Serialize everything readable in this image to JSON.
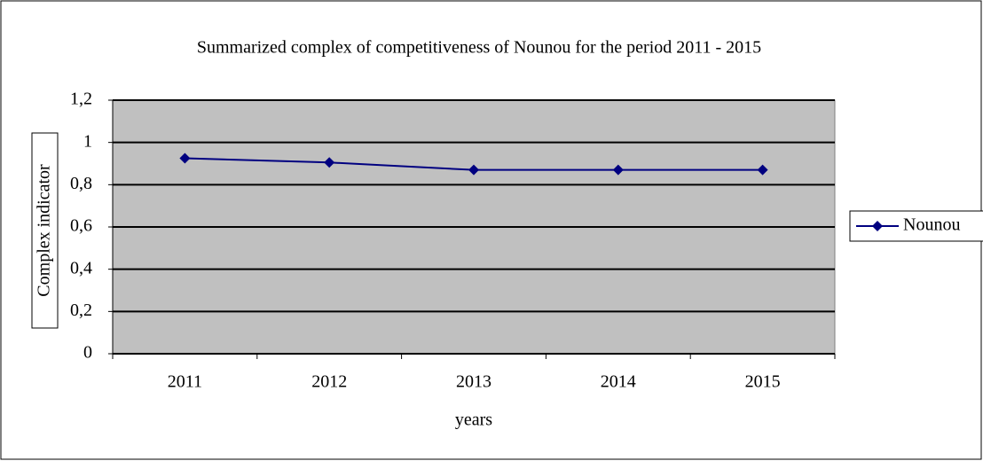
{
  "chart_data": {
    "type": "line",
    "title": "Summarized complex of competitiveness of  Nounou for the period 2011 - 2015",
    "x_label": "years",
    "y_label": "Complex indicator",
    "categories": [
      "2011",
      "2012",
      "2013",
      "2014",
      "2015"
    ],
    "series": [
      {
        "name": "Nounou",
        "color": "#000080",
        "values": [
          0.925,
          0.905,
          0.87,
          0.87,
          0.87
        ]
      }
    ],
    "ylim": [
      0,
      1.2
    ],
    "yticks": [
      0,
      {
        "value": 0.2,
        "label": "0,2"
      },
      {
        "value": 0.4,
        "label": "0,4"
      },
      {
        "value": 0.6,
        "label": "0,6"
      },
      {
        "value": 0.8,
        "label": "0,8"
      },
      1,
      {
        "value": 1.2,
        "label": "1,2"
      }
    ],
    "grid": true,
    "legend": "right"
  }
}
